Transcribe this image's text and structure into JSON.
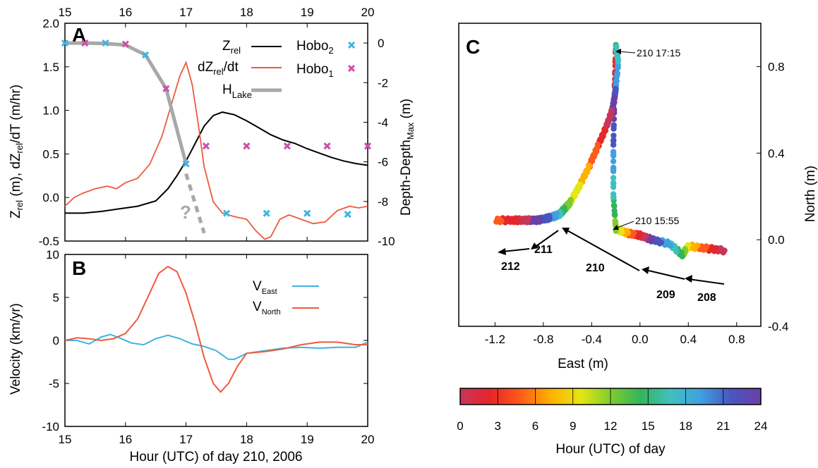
{
  "chart_data": [
    {
      "panel": "A",
      "type": "line",
      "xlabel": "",
      "x_ticks": [
        "15",
        "16",
        "17",
        "18",
        "19",
        "20"
      ],
      "xlim": [
        15,
        20
      ],
      "ylabel_left": "Z_rel (m), dZ_rel/dT (m/hr)",
      "ylim_left": [
        -0.5,
        2.0
      ],
      "y_ticks_left": [
        "2.0",
        "1.5",
        "1.0",
        "0.5",
        "0.0",
        "-0.5"
      ],
      "ylabel_right": "Depth-Depth_Max (m)",
      "ylim_right": [
        -10,
        1
      ],
      "y_ticks_right": [
        "0",
        "-2",
        "-4",
        "-6",
        "-8",
        "-10"
      ],
      "top_x_ticks": [
        "15",
        "16",
        "17",
        "18",
        "19",
        "20"
      ],
      "legend": [
        "Z_rel",
        "dZ_rel/dt",
        "H_Lake",
        "Hobo_2",
        "Hobo_1"
      ],
      "question_mark": "?",
      "colors": {
        "zrel": "#000000",
        "dzdt": "#ee5a3c",
        "hlake": "#a8a8a8",
        "hobo2": "#3fb3de",
        "hobo1": "#cc4fa6"
      },
      "series": [
        {
          "name": "Z_rel",
          "axis": "left",
          "x": [
            15.0,
            15.3,
            15.6,
            15.9,
            16.2,
            16.5,
            16.7,
            16.85,
            17.0,
            17.15,
            17.3,
            17.45,
            17.6,
            17.8,
            18.0,
            18.2,
            18.4,
            18.6,
            18.8,
            19.0,
            19.2,
            19.4,
            19.6,
            19.8,
            20.0
          ],
          "y": [
            -0.18,
            -0.18,
            -0.16,
            -0.13,
            -0.1,
            -0.04,
            0.1,
            0.25,
            0.42,
            0.62,
            0.82,
            0.94,
            0.98,
            0.95,
            0.88,
            0.8,
            0.72,
            0.66,
            0.62,
            0.56,
            0.51,
            0.46,
            0.42,
            0.39,
            0.37
          ]
        },
        {
          "name": "dZ_rel/dt",
          "axis": "left",
          "x": [
            15.0,
            15.15,
            15.3,
            15.5,
            15.7,
            15.85,
            16.0,
            16.2,
            16.4,
            16.6,
            16.75,
            16.9,
            17.0,
            17.1,
            17.2,
            17.3,
            17.45,
            17.6,
            17.8,
            18.0,
            18.15,
            18.3,
            18.4,
            18.55,
            18.7,
            18.9,
            19.1,
            19.3,
            19.5,
            19.7,
            19.85,
            20.0
          ],
          "y": [
            -0.1,
            0.0,
            0.05,
            0.1,
            0.13,
            0.1,
            0.17,
            0.22,
            0.38,
            0.7,
            1.05,
            1.4,
            1.55,
            1.3,
            0.85,
            0.35,
            -0.05,
            -0.18,
            -0.22,
            -0.25,
            -0.38,
            -0.48,
            -0.45,
            -0.25,
            -0.2,
            -0.25,
            -0.3,
            -0.28,
            -0.15,
            -0.1,
            -0.12,
            -0.1
          ]
        },
        {
          "name": "H_Lake",
          "axis": "right",
          "x": [
            15.0,
            15.33,
            15.67,
            16.0,
            16.33,
            16.67,
            17.0
          ],
          "y": [
            0.0,
            0.0,
            -0.02,
            -0.1,
            -0.6,
            -2.3,
            -6.1
          ]
        },
        {
          "name": "H_Lake_extrapolated",
          "axis": "right",
          "x": [
            17.0,
            17.3
          ],
          "y": [
            -6.6,
            -9.6
          ]
        },
        {
          "name": "Hobo_2",
          "axis": "right",
          "x": [
            15.0,
            15.67,
            16.33,
            17.0,
            17.67,
            18.33,
            19.0,
            19.67
          ],
          "y": [
            0.0,
            0.0,
            -0.6,
            -6.1,
            -8.6,
            -8.6,
            -8.6,
            -8.65
          ]
        },
        {
          "name": "Hobo_1",
          "axis": "right",
          "x": [
            15.33,
            16.0,
            16.67,
            17.33,
            18.0,
            18.67,
            19.33,
            20.0
          ],
          "y": [
            0.0,
            -0.05,
            -2.3,
            -5.2,
            -5.2,
            -5.2,
            -5.2,
            -5.2
          ]
        }
      ]
    },
    {
      "panel": "B",
      "type": "line",
      "xlabel": "Hour (UTC) of day 210, 2006",
      "x_ticks": [
        "15",
        "16",
        "17",
        "18",
        "19",
        "20"
      ],
      "xlim": [
        15,
        20
      ],
      "ylabel": "Velocity (km/yr)",
      "ylim": [
        -10,
        10
      ],
      "y_ticks": [
        "10",
        "5",
        "0",
        "-5",
        "-10"
      ],
      "legend": [
        "V_East",
        "V_North"
      ],
      "colors": {
        "veast": "#3fb3de",
        "vnorth": "#ee5a3c"
      },
      "series": [
        {
          "name": "V_East",
          "x": [
            15.0,
            15.2,
            15.4,
            15.6,
            15.75,
            15.9,
            16.1,
            16.3,
            16.5,
            16.7,
            16.9,
            17.1,
            17.3,
            17.5,
            17.7,
            17.8,
            18.0,
            18.3,
            18.6,
            18.9,
            19.2,
            19.5,
            19.8,
            20.0
          ],
          "y": [
            0.0,
            0.0,
            -0.4,
            0.4,
            0.7,
            0.3,
            -0.3,
            -0.5,
            0.2,
            0.6,
            0.2,
            -0.4,
            -0.7,
            -1.2,
            -2.2,
            -2.2,
            -1.5,
            -1.2,
            -0.9,
            -0.8,
            -0.9,
            -0.8,
            -0.8,
            -0.2
          ]
        },
        {
          "name": "V_North",
          "x": [
            15.0,
            15.2,
            15.4,
            15.6,
            15.8,
            16.0,
            16.2,
            16.4,
            16.55,
            16.7,
            16.85,
            17.0,
            17.15,
            17.3,
            17.45,
            17.57,
            17.7,
            17.85,
            18.0,
            18.3,
            18.6,
            18.9,
            19.2,
            19.5,
            19.8,
            20.0
          ],
          "y": [
            0.0,
            0.3,
            0.2,
            0.0,
            0.2,
            0.8,
            2.5,
            5.5,
            7.8,
            8.6,
            8.0,
            5.5,
            2.0,
            -2.0,
            -5.0,
            -6.0,
            -5.0,
            -3.0,
            -1.5,
            -1.3,
            -1.0,
            -0.5,
            -0.2,
            -0.2,
            -0.5,
            -0.5
          ]
        }
      ]
    },
    {
      "panel": "C",
      "type": "scatter",
      "xlabel": "East (m)",
      "xlim": [
        -1.5,
        1.0
      ],
      "x_ticks": [
        "-1.2",
        "-0.8",
        "-0.4",
        "0.0",
        "0.4",
        "0.8"
      ],
      "ylabel": "North (m)",
      "ylim": [
        -0.4,
        1.0
      ],
      "y_ticks": [
        "0.8",
        "0.4",
        "0.0",
        "-0.4"
      ],
      "colorbar_label": "Hour (UTC) of day",
      "colorbar_ticks": [
        "0",
        "3",
        "6",
        "9",
        "12",
        "15",
        "18",
        "21",
        "24"
      ],
      "colormap": [
        "#c8365a",
        "#e6262a",
        "#ff5a1a",
        "#ffb000",
        "#e6e612",
        "#7fcc30",
        "#34b45a",
        "#3fc0c0",
        "#40a0e0",
        "#4a55c0",
        "#6a3fa8"
      ],
      "annotations": [
        "210 17:15",
        "210 15:55"
      ],
      "day_arrows": [
        "212",
        "211",
        "210",
        "209",
        "208"
      ],
      "track_days_210_212": {
        "x": [
          -0.2,
          -0.18,
          -0.2,
          -0.21,
          -0.23,
          -0.28,
          -0.35,
          -0.42,
          -0.5,
          -0.58,
          -0.63,
          -0.66,
          -0.7,
          -0.76,
          -0.85,
          -0.95,
          -1.05,
          -1.2
        ],
        "y": [
          0.9,
          0.82,
          0.7,
          0.66,
          0.6,
          0.52,
          0.43,
          0.34,
          0.25,
          0.17,
          0.14,
          0.12,
          0.11,
          0.1,
          0.09,
          0.09,
          0.09,
          0.09
        ]
      },
      "track_days_208_210": {
        "x": [
          0.7,
          0.55,
          0.4,
          0.35,
          0.25,
          0.1,
          0.0,
          -0.1,
          -0.2,
          -0.22,
          -0.22,
          -0.21,
          -0.2
        ],
        "y": [
          -0.05,
          -0.04,
          -0.03,
          -0.07,
          -0.02,
          0.0,
          0.02,
          0.03,
          0.05,
          0.2,
          0.45,
          0.7,
          0.9
        ]
      }
    }
  ]
}
